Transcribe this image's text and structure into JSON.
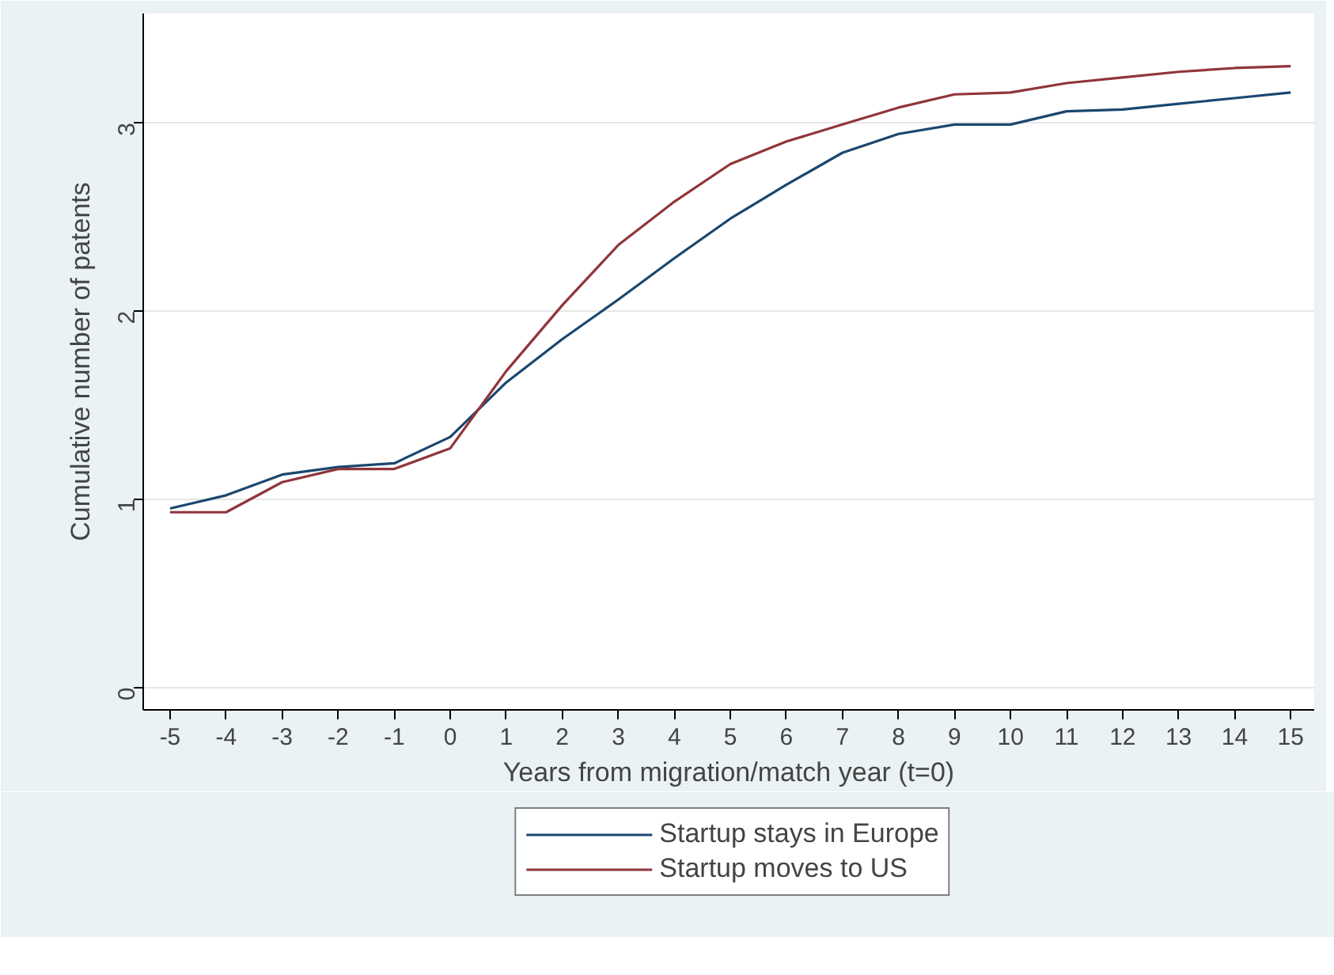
{
  "chart_data": {
    "type": "line",
    "xlabel": "Years from migration/match year (t=0)",
    "ylabel": "Cumulative number of patents",
    "x": [
      -5,
      -4,
      -3,
      -2,
      -1,
      0,
      1,
      2,
      3,
      4,
      5,
      6,
      7,
      8,
      9,
      10,
      11,
      12,
      13,
      14,
      15
    ],
    "series": [
      {
        "name": "Startup stays in Europe",
        "color": "#1a476f",
        "values": [
          0.95,
          1.02,
          1.13,
          1.17,
          1.19,
          1.33,
          1.62,
          1.85,
          2.06,
          2.28,
          2.49,
          2.67,
          2.84,
          2.94,
          2.99,
          2.99,
          3.06,
          3.07,
          3.1,
          3.13,
          3.16
        ]
      },
      {
        "name": "Startup moves to US",
        "color": "#90353b",
        "values": [
          0.93,
          0.93,
          1.09,
          1.16,
          1.16,
          1.27,
          1.68,
          2.03,
          2.35,
          2.58,
          2.78,
          2.9,
          2.99,
          3.08,
          3.15,
          3.16,
          3.21,
          3.24,
          3.27,
          3.29,
          3.3
        ]
      }
    ],
    "xlim": [
      -5.48,
      15.42
    ],
    "xticks": [
      -5,
      -4,
      -3,
      -2,
      -1,
      0,
      1,
      2,
      3,
      4,
      5,
      6,
      7,
      8,
      9,
      10,
      11,
      12,
      13,
      14,
      15
    ],
    "ylim": [
      -0.12,
      3.58
    ],
    "yticks": [
      0,
      1,
      2,
      3
    ],
    "grid": "y",
    "legend": "bottom",
    "marker": "none",
    "line_style": "solid"
  }
}
